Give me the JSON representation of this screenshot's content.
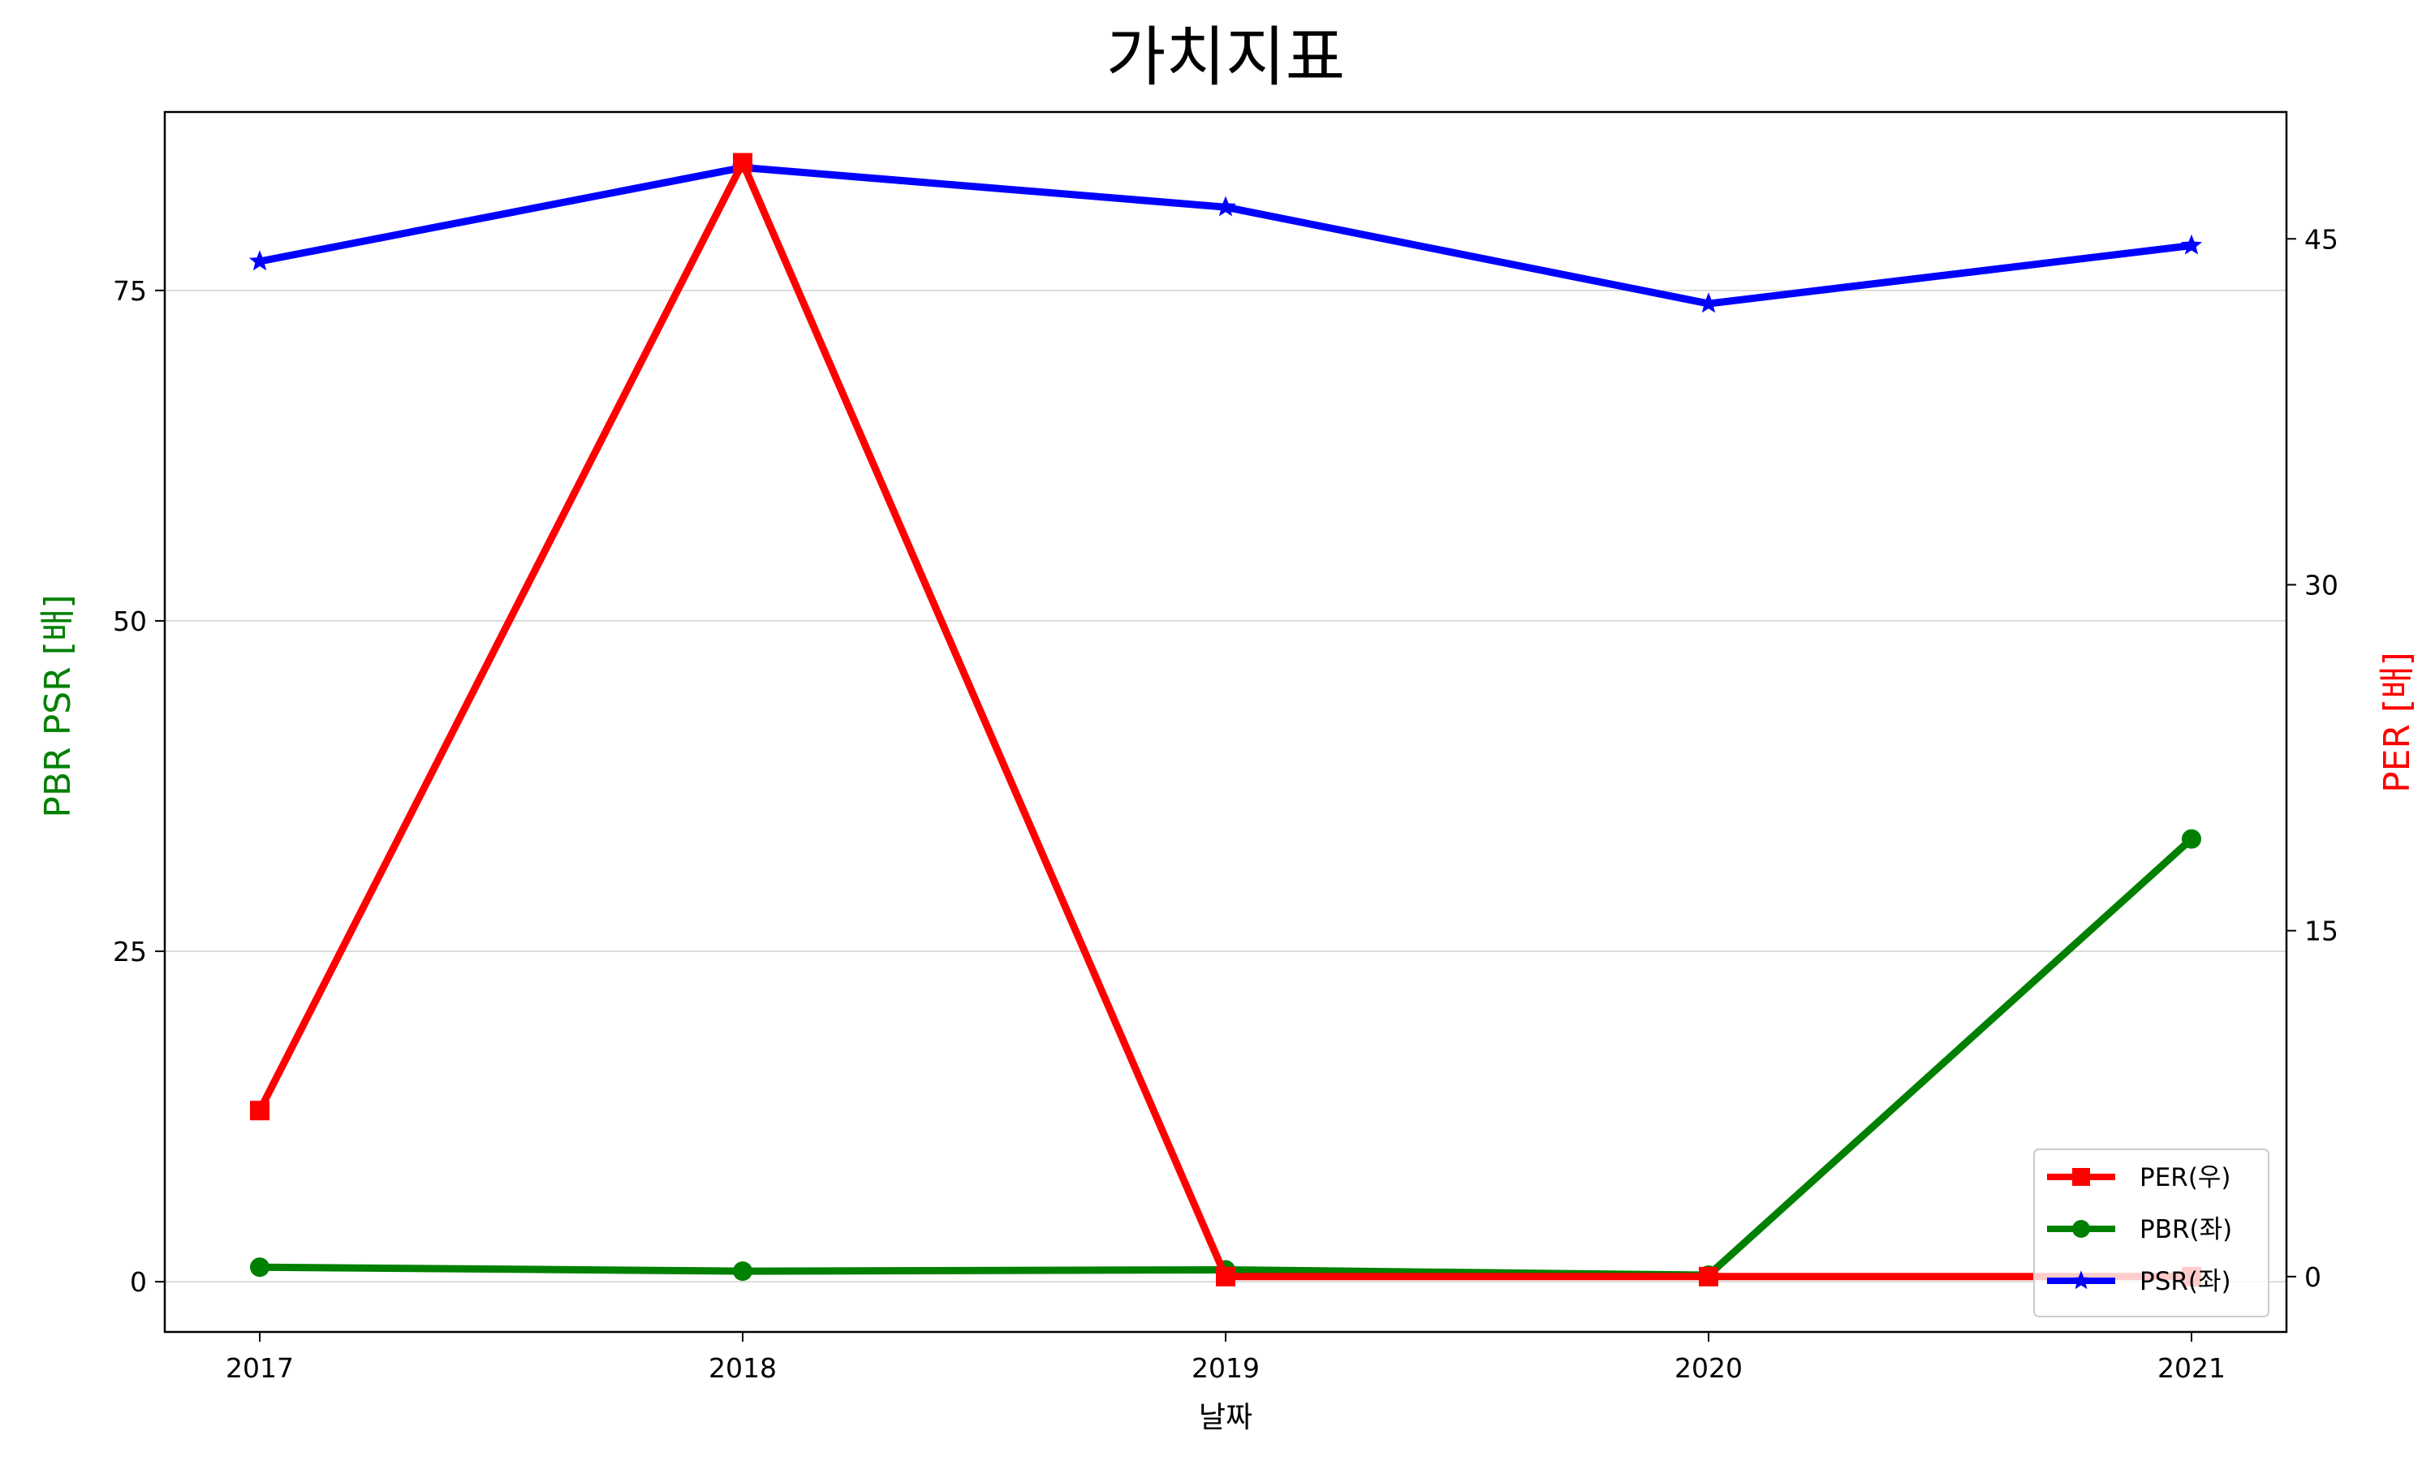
{
  "chart_data": {
    "type": "line",
    "title": "가치지표",
    "xlabel": "날짜",
    "ylabel_left": "PBR PSR [배]",
    "ylabel_right": "PER [배]",
    "categories": [
      "2017",
      "2018",
      "2019",
      "2020",
      "2021"
    ],
    "y_left": {
      "ticks": [
        0,
        25,
        50,
        75
      ],
      "lim": [
        -3.8,
        88.5
      ]
    },
    "y_right": {
      "ticks": [
        0,
        15,
        30,
        45
      ],
      "lim": [
        -2.4,
        50.5
      ]
    },
    "grid": "y-left",
    "legend": {
      "position": "lower-right",
      "entries": [
        "PER(우)",
        "PBR(좌)",
        "PSR(좌)"
      ]
    },
    "series": [
      {
        "name": "PER(우)",
        "axis": "right",
        "color": "#ff0000",
        "marker": "square",
        "values": [
          7.2,
          48.3,
          0.0,
          0.0,
          0.0
        ]
      },
      {
        "name": "PBR(좌)",
        "axis": "left",
        "color": "#008000",
        "marker": "circle",
        "values": [
          1.1,
          0.8,
          0.9,
          0.5,
          33.5
        ]
      },
      {
        "name": "PSR(좌)",
        "axis": "left",
        "color": "#0000ff",
        "marker": "star",
        "values": [
          77.2,
          84.3,
          81.3,
          74.0,
          78.4
        ]
      }
    ]
  }
}
